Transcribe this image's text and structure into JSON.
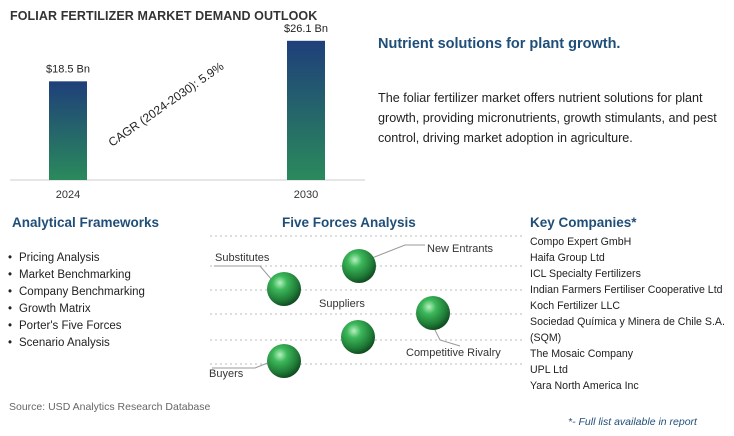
{
  "title": "FOLIAR FERTILIZER MARKET DEMAND OUTLOOK",
  "chart_data": {
    "type": "bar",
    "categories": [
      "2024",
      "2030"
    ],
    "values": [
      18.5,
      26.1
    ],
    "value_labels": [
      "$18.5 Bn",
      "$26.1 Bn"
    ],
    "annotation": "CAGR (2024-2030):  5.9%",
    "ylim": [
      0,
      30
    ]
  },
  "tagline": "Nutrient solutions for plant growth.",
  "description": "The foliar fertilizer market offers nutrient solutions for plant growth, providing micronutrients, growth stimulants, and pest control, driving market adoption in agriculture.",
  "frameworks": {
    "title": "Analytical Frameworks",
    "items": [
      "Pricing Analysis",
      "Market Benchmarking",
      "Company Benchmarking",
      "Growth Matrix",
      "Porter's Five Forces",
      "Scenario Analysis"
    ]
  },
  "five_forces": {
    "title": "Five Forces Analysis",
    "labels": {
      "new_entrants": "New Entrants",
      "substitutes": "Substitutes",
      "suppliers": "Suppliers",
      "competitive_rivalry": "Competitive Rivalry",
      "buyers": "Buyers"
    }
  },
  "companies": {
    "title": "Key Companies*",
    "items": [
      "Compo Expert GmbH",
      "Haifa Group Ltd",
      "ICL Specialty Fertilizers",
      "Indian Farmers Fertiliser Cooperative Ltd",
      "Koch Fertilizer LLC",
      "Sociedad Química y Minera de Chile S.A. (SQM)",
      "The Mosaic Company",
      "UPL Ltd",
      "Yara North America Inc"
    ],
    "note": "*- Full list available in report"
  },
  "source": "Source: USD Analytics Research Database",
  "colors": {
    "accent": "#1f4e79",
    "bar_top": "#1f3f7a",
    "bar_bottom": "#2a8a5c",
    "sphere": "#2e9e4a"
  }
}
